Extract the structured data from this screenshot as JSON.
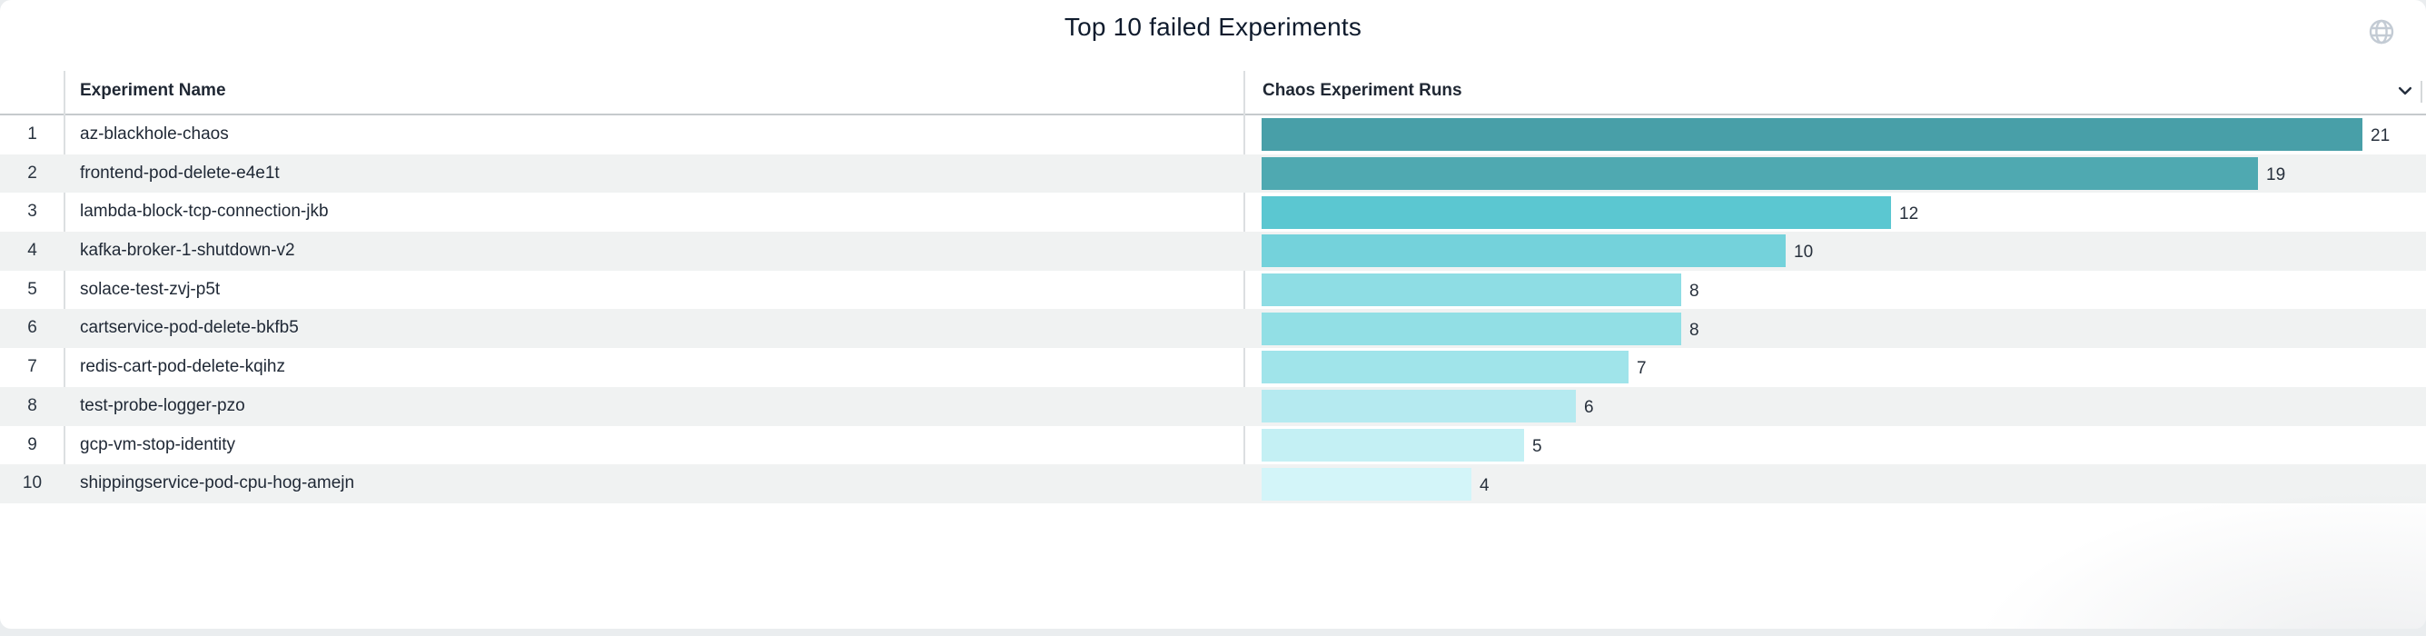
{
  "title": "Top 10 failed Experiments",
  "header": {
    "experiment_name_label": "Experiment Name",
    "runs_label": "Chaos Experiment Runs"
  },
  "icons": {
    "top_right": "globe-icon",
    "runs_column_sort": "chevron-down-icon"
  },
  "colors": {
    "page_background": "#EAEDEF",
    "card_background": "#FFFFFF",
    "title_text": "#0F1B2D",
    "header_text": "#1F2733",
    "body_text": "#1F2835",
    "value_label_text": "#27303C",
    "row_stripe": "#F0F2F2",
    "column_divider": "#DCDFE1",
    "header_border": "#C6CACD",
    "globe_icon": "#C3CBD4",
    "chevron_icon": "#252F3E"
  },
  "chart_data": {
    "type": "bar",
    "orientation": "horizontal",
    "title": "Top 10 failed Experiments",
    "series_label": "Chaos Experiment Runs",
    "ranks": [
      1,
      2,
      3,
      4,
      5,
      6,
      7,
      8,
      9,
      10
    ],
    "categories": [
      "az-blackhole-chaos",
      "frontend-pod-delete-e4e1t",
      "lambda-block-tcp-connection-jkb",
      "kafka-broker-1-shutdown-v2",
      "solace-test-zvj-p5t",
      "cartservice-pod-delete-bkfb5",
      "redis-cart-pod-delete-kqihz",
      "test-probe-logger-pzo",
      "gcp-vm-stop-identity",
      "shippingservice-pod-cpu-hog-amejn"
    ],
    "values": [
      21,
      19,
      12,
      10,
      8,
      8,
      7,
      6,
      5,
      4
    ],
    "xlim": [
      0,
      21
    ],
    "grid": false,
    "legend": false,
    "data_labels": true,
    "bar_colors": [
      "#489FA8",
      "#4FA9B1",
      "#5BC7D1",
      "#74D2DB",
      "#8EDDE4",
      "#92DFE5",
      "#A0E4EA",
      "#B5EAF0",
      "#C4F0F4",
      "#D3F5F9"
    ]
  }
}
